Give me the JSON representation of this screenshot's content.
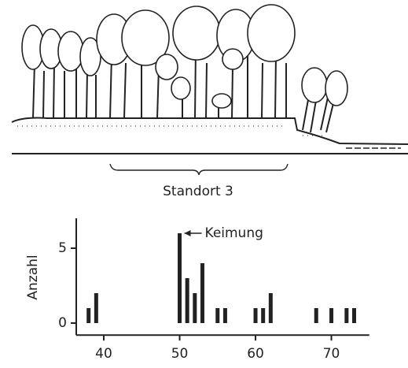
{
  "illustration": {
    "label": "Standort 3"
  },
  "chart_data": {
    "type": "bar",
    "y_label": "Anzahl",
    "annotation": "Keimung",
    "x": [
      38,
      39,
      50,
      51,
      52,
      53,
      55,
      56,
      60,
      61,
      62,
      68,
      70,
      72,
      73
    ],
    "values": [
      1,
      2,
      6,
      3,
      2,
      4,
      1,
      1,
      1,
      1,
      2,
      1,
      1,
      1,
      1
    ],
    "color": "#222222",
    "xlim": [
      36,
      75
    ],
    "xticks": [
      40,
      50,
      60,
      70
    ],
    "ylim": [
      -0.8,
      7
    ],
    "yticks": [
      0,
      5
    ]
  }
}
